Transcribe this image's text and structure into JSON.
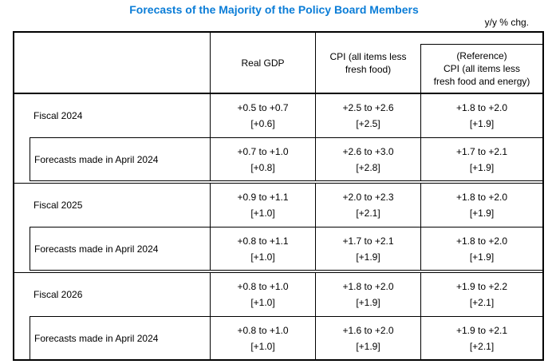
{
  "title": "Forecasts of the Majority of the Policy Board Members",
  "unit_note": "y/y % chg.",
  "accent_color": "#0b7dd7",
  "table": {
    "headers": {
      "real_gdp": "Real GDP",
      "cpi": "CPI (all items less\nfresh food)",
      "reference": "(Reference)\nCPI (all items less\nfresh food and energy)"
    },
    "groups": [
      {
        "fiscal_label": "Fiscal 2024",
        "previous_label": "Forecasts made in April 2024",
        "current": {
          "gdp": {
            "range": "+0.5 to +0.7",
            "median": "[+0.6]"
          },
          "cpi": {
            "range": "+2.5 to +2.6",
            "median": "[+2.5]"
          },
          "reference": {
            "range": "+1.8 to +2.0",
            "median": "[+1.9]"
          }
        },
        "previous": {
          "gdp": {
            "range": "+0.7 to +1.0",
            "median": "[+0.8]"
          },
          "cpi": {
            "range": "+2.6 to +3.0",
            "median": "[+2.8]"
          },
          "reference": {
            "range": "+1.7 to +2.1",
            "median": "[+1.9]"
          }
        }
      },
      {
        "fiscal_label": "Fiscal 2025",
        "previous_label": "Forecasts made in April 2024",
        "current": {
          "gdp": {
            "range": "+0.9 to +1.1",
            "median": "[+1.0]"
          },
          "cpi": {
            "range": "+2.0 to +2.3",
            "median": "[+2.1]"
          },
          "reference": {
            "range": "+1.8 to +2.0",
            "median": "[+1.9]"
          }
        },
        "previous": {
          "gdp": {
            "range": "+0.8 to +1.1",
            "median": "[+1.0]"
          },
          "cpi": {
            "range": "+1.7 to +2.1",
            "median": "[+1.9]"
          },
          "reference": {
            "range": "+1.8 to +2.0",
            "median": "[+1.9]"
          }
        }
      },
      {
        "fiscal_label": "Fiscal 2026",
        "previous_label": "Forecasts made in April 2024",
        "current": {
          "gdp": {
            "range": "+0.8 to +1.0",
            "median": "[+1.0]"
          },
          "cpi": {
            "range": "+1.8 to +2.0",
            "median": "[+1.9]"
          },
          "reference": {
            "range": "+1.9 to +2.2",
            "median": "[+2.1]"
          }
        },
        "previous": {
          "gdp": {
            "range": "+0.8 to +1.0",
            "median": "[+1.0]"
          },
          "cpi": {
            "range": "+1.6 to +2.0",
            "median": "[+1.9]"
          },
          "reference": {
            "range": "+1.9 to +2.1",
            "median": "[+2.1]"
          }
        }
      }
    ]
  }
}
